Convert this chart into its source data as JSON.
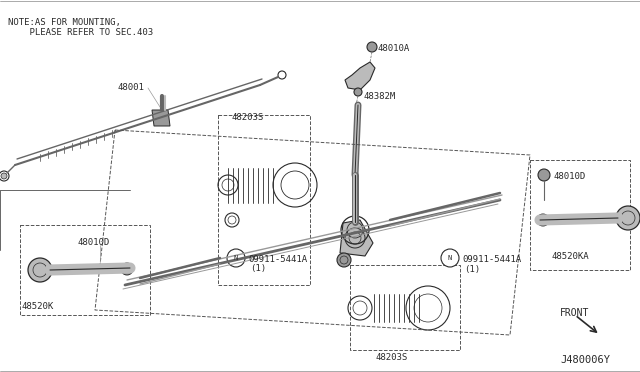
{
  "bg_color": "#ffffff",
  "line_color": "#2a2a2a",
  "gray1": "#444444",
  "gray2": "#666666",
  "gray3": "#999999",
  "gray4": "#bbbbbb",
  "dash_color": "#555555",
  "note_line1": "NOTE:AS FOR MOUNTING,",
  "note_line2": "    PLEASE REFER TO SEC.403",
  "diagram_code": "J480006Y",
  "font_size_small": 6.5,
  "font_size_label": 7.0,
  "font_size_code": 7.5
}
